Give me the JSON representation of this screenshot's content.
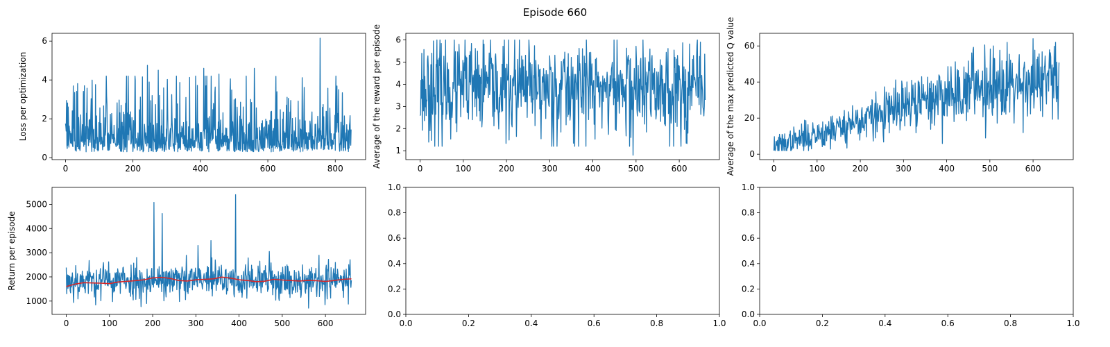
{
  "figure": {
    "title": "Episode 660"
  },
  "chart_data": [
    {
      "type": "line",
      "panel": "top-left",
      "title": "",
      "xlabel": "",
      "ylabel": "Loss per optimization",
      "xlim": [
        -40,
        890
      ],
      "ylim": [
        -0.1,
        6.4
      ],
      "xticks": [
        0,
        200,
        400,
        600,
        800
      ],
      "yticks": [
        0,
        2,
        4,
        6
      ],
      "series": [
        {
          "name": "loss",
          "color": "#1f77b4",
          "n": 848,
          "base": 0.3,
          "scale": 1.2,
          "trend": 0,
          "noise_kind": "expo",
          "peaks": [
            [
              755,
              6.15
            ],
            [
              243,
              4.75
            ],
            [
              410,
              4.6
            ],
            [
              560,
              4.6
            ],
            [
              275,
              4.5
            ],
            [
              455,
              4.3
            ]
          ]
        }
      ],
      "seed": 11
    },
    {
      "type": "line",
      "panel": "top-middle",
      "title": "",
      "xlabel": "",
      "ylabel": "Average of the reward per episode",
      "xlim": [
        -33,
        693
      ],
      "ylim": [
        0.6,
        6.3
      ],
      "xticks": [
        0,
        100,
        200,
        300,
        400,
        500,
        600
      ],
      "yticks": [
        1,
        2,
        3,
        4,
        5,
        6
      ],
      "series": [
        {
          "name": "avg_reward",
          "color": "#1f77b4",
          "n": 661,
          "base": 3.8,
          "scale": 1.1,
          "trend": 0,
          "noise_kind": "gauss",
          "clip": [
            1.2,
            6.0
          ],
          "peaks": [
            [
              493,
              0.8
            ],
            [
              43,
              1.2
            ],
            [
              385,
              6.0
            ]
          ]
        }
      ],
      "seed": 23
    },
    {
      "type": "line",
      "panel": "top-right",
      "title": "",
      "xlabel": "",
      "ylabel": "Average of the max predicted Q value",
      "xlim": [
        -33,
        693
      ],
      "ylim": [
        -3,
        67
      ],
      "xticks": [
        0,
        100,
        200,
        300,
        400,
        500,
        600
      ],
      "yticks": [
        0,
        20,
        40,
        60
      ],
      "series": [
        {
          "name": "max_q",
          "color": "#1f77b4",
          "n": 661,
          "base": 4,
          "scale": 6.5,
          "trend": 1,
          "noise_kind": "gauss",
          "clip": [
            2,
            64
          ],
          "peaks": [
            [
              490,
              9
            ],
            [
              600,
              64
            ],
            [
              540,
              62
            ]
          ]
        }
      ],
      "seed": 37
    },
    {
      "type": "line",
      "panel": "bottom-left",
      "title": "",
      "xlabel": "",
      "ylabel": "Return per episode",
      "xlim": [
        -33,
        693
      ],
      "ylim": [
        450,
        5700
      ],
      "xticks": [
        0,
        100,
        200,
        300,
        400,
        500,
        600
      ],
      "yticks": [
        1000,
        2000,
        3000,
        4000,
        5000
      ],
      "series": [
        {
          "name": "return",
          "color": "#1f77b4",
          "n": 661,
          "base": 1850,
          "scale": 380,
          "trend": 0,
          "noise_kind": "gauss",
          "clip": [
            650,
            3100
          ],
          "peaks": [
            [
              392,
              5400
            ],
            [
              203,
              5080
            ],
            [
              222,
              4620
            ],
            [
              335,
              3500
            ],
            [
              305,
              3300
            ],
            [
              470,
              3050
            ]
          ]
        },
        {
          "name": "moving-average",
          "color": "#d62728",
          "points": [
            [
              0,
              1600
            ],
            [
              20,
              1700
            ],
            [
              40,
              1760
            ],
            [
              60,
              1750
            ],
            [
              80,
              1740
            ],
            [
              100,
              1720
            ],
            [
              120,
              1790
            ],
            [
              150,
              1830
            ],
            [
              180,
              1880
            ],
            [
              200,
              1960
            ],
            [
              220,
              1980
            ],
            [
              240,
              1940
            ],
            [
              260,
              1850
            ],
            [
              280,
              1830
            ],
            [
              300,
              1880
            ],
            [
              320,
              1900
            ],
            [
              340,
              1920
            ],
            [
              360,
              1990
            ],
            [
              380,
              1950
            ],
            [
              400,
              1880
            ],
            [
              420,
              1850
            ],
            [
              440,
              1800
            ],
            [
              460,
              1820
            ],
            [
              480,
              1900
            ],
            [
              500,
              1870
            ],
            [
              520,
              1850
            ],
            [
              540,
              1830
            ],
            [
              560,
              1860
            ],
            [
              580,
              1840
            ],
            [
              600,
              1810
            ],
            [
              620,
              1850
            ],
            [
              640,
              1900
            ],
            [
              660,
              1920
            ]
          ]
        }
      ],
      "seed": 53
    },
    {
      "type": "line",
      "panel": "bottom-middle",
      "title": "",
      "xlabel": "",
      "ylabel": "",
      "xlim": [
        0,
        1
      ],
      "ylim": [
        0,
        1
      ],
      "xticks": [
        0.0,
        0.2,
        0.4,
        0.6,
        0.8,
        1.0
      ],
      "yticks": [
        0.0,
        0.2,
        0.4,
        0.6,
        0.8,
        1.0
      ],
      "tick_decimals": 1,
      "series": []
    },
    {
      "type": "line",
      "panel": "bottom-right",
      "title": "",
      "xlabel": "",
      "ylabel": "",
      "xlim": [
        0,
        1
      ],
      "ylim": [
        0,
        1
      ],
      "xticks": [
        0.0,
        0.2,
        0.4,
        0.6,
        0.8,
        1.0
      ],
      "yticks": [
        0.0,
        0.2,
        0.4,
        0.6,
        0.8,
        1.0
      ],
      "tick_decimals": 1,
      "series": []
    }
  ]
}
